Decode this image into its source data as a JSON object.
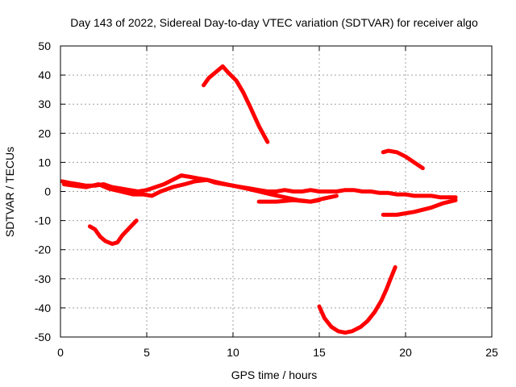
{
  "chart_data": {
    "type": "line",
    "title": "Day 143 of 2022, Sidereal Day-to-day VTEC variation (SDTVAR) for receiver algo",
    "xlabel": "GPS time / hours",
    "ylabel": "SDTVAR / TECUs",
    "xlim": [
      0,
      25
    ],
    "ylim": [
      -50,
      50
    ],
    "xticks": [
      0,
      5,
      10,
      15,
      20,
      25
    ],
    "yticks": [
      -50,
      -40,
      -30,
      -20,
      -10,
      0,
      10,
      20,
      30,
      40,
      50
    ],
    "grid": true,
    "series_color": "#ff0000",
    "series": [
      {
        "name": "main-band-1",
        "x": [
          0.1,
          0.5,
          1.0,
          1.5,
          2.0,
          2.5,
          3.0,
          3.5,
          4.0,
          4.5,
          5.0,
          5.5,
          6.0,
          6.5,
          7.0,
          7.5,
          8.0,
          8.5,
          9.0,
          9.5,
          10.0,
          10.5,
          11.0,
          11.5,
          12.0,
          12.5,
          13.0,
          13.5,
          14.0,
          14.5,
          15.0,
          15.5,
          16.0,
          16.5,
          17.0,
          17.5,
          18.0,
          18.5,
          19.0,
          19.5,
          20.0,
          20.5,
          21.0,
          21.5,
          22.0,
          22.5,
          22.9
        ],
        "y": [
          3.5,
          3.0,
          2.5,
          2.0,
          2.0,
          2.5,
          1.5,
          1.0,
          0.5,
          0.0,
          0.5,
          1.5,
          2.5,
          4.0,
          5.5,
          5.0,
          4.5,
          4.0,
          3.0,
          2.5,
          2.0,
          1.5,
          1.0,
          0.5,
          0.0,
          0.0,
          0.5,
          0.0,
          0.0,
          0.5,
          0.0,
          0.0,
          0.0,
          0.5,
          0.5,
          0.0,
          0.0,
          -0.5,
          -0.5,
          -1.0,
          -1.0,
          -1.5,
          -1.5,
          -1.5,
          -2.0,
          -2.0,
          -2.0
        ]
      },
      {
        "name": "main-band-2",
        "x": [
          0.2,
          0.8,
          1.5,
          2.2,
          2.8,
          3.5,
          4.2,
          4.8,
          5.3,
          5.8,
          6.5,
          7.2,
          7.8,
          8.5,
          9.2,
          10.0,
          10.8,
          11.5,
          12.2,
          13.0,
          13.8,
          14.5,
          15.2,
          16.0
        ],
        "y": [
          2.5,
          2.0,
          1.5,
          2.5,
          1.0,
          0.0,
          -1.0,
          -1.0,
          -1.5,
          0.0,
          1.5,
          2.5,
          3.5,
          4.0,
          3.0,
          2.0,
          1.0,
          0.0,
          -1.0,
          -2.0,
          -3.0,
          -3.5,
          -2.5,
          -1.5
        ]
      },
      {
        "name": "lower-band",
        "x": [
          11.5,
          12.5,
          13.5,
          14.5,
          15.0
        ],
        "y": [
          -3.5,
          -3.5,
          -3.0,
          -3.5,
          -3.0
        ]
      },
      {
        "name": "return-band",
        "x": [
          18.7,
          19.5,
          20.5,
          21.5,
          22.2,
          22.9
        ],
        "y": [
          -8.0,
          -8.0,
          -7.0,
          -5.5,
          -4.0,
          -3.0
        ]
      },
      {
        "name": "arc-1",
        "x": [
          1.7,
          2.0,
          2.3,
          2.6,
          3.0,
          3.3,
          3.6,
          4.0,
          4.4
        ],
        "y": [
          -12.0,
          -13.0,
          -15.5,
          -17.0,
          -18.0,
          -17.5,
          -15.0,
          -12.5,
          -10.0
        ]
      },
      {
        "name": "arc-2",
        "x": [
          8.3,
          8.6,
          9.0,
          9.4,
          9.7,
          10.2,
          10.6,
          11.0,
          11.5,
          12.0
        ],
        "y": [
          36.5,
          39.0,
          41.0,
          43.0,
          41.0,
          38.0,
          34.0,
          29.0,
          22.5,
          17.0
        ]
      },
      {
        "name": "arc-3",
        "x": [
          15.0,
          15.3,
          15.7,
          16.1,
          16.5,
          16.9,
          17.4,
          17.8,
          18.2,
          18.6,
          18.9,
          19.1,
          19.4
        ],
        "y": [
          -39.5,
          -43.5,
          -46.5,
          -48.0,
          -48.5,
          -48.0,
          -46.5,
          -44.5,
          -41.5,
          -37.5,
          -33.5,
          -30.5,
          -26.0
        ]
      },
      {
        "name": "arc-4",
        "x": [
          18.7,
          19.0,
          19.5,
          20.0,
          20.5,
          21.0
        ],
        "y": [
          13.5,
          14.0,
          13.5,
          12.0,
          10.0,
          8.0
        ]
      }
    ]
  }
}
